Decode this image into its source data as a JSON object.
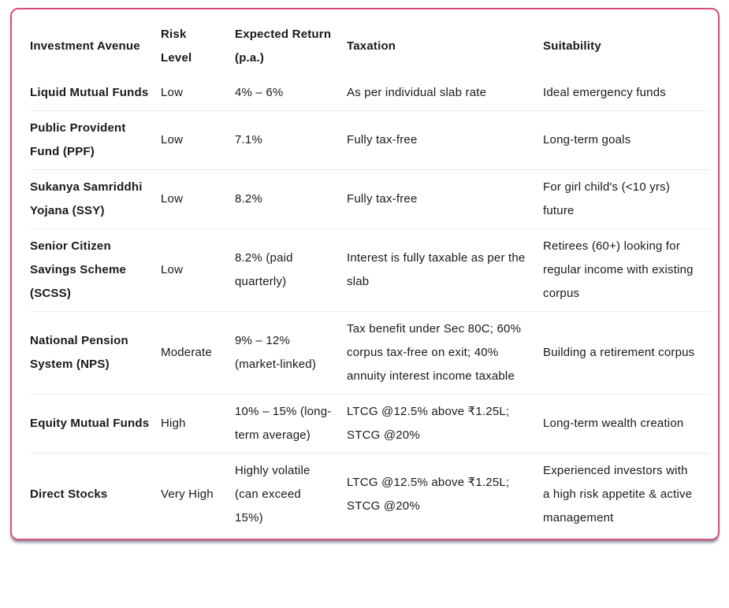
{
  "colors": {
    "accent_pink": "#D84E7D",
    "divider": "#E5EEEE",
    "text": "#191919",
    "bottom_shadow": "#39415A",
    "background": "#FFFFFF"
  },
  "table": {
    "columns": [
      "Investment Avenue",
      "Risk Level",
      "Expected Return (p.a.)",
      "Taxation",
      "Suitability"
    ],
    "rows": [
      {
        "avenue": "Liquid Mutual Funds",
        "risk": "Low",
        "return": "4% – 6%",
        "taxation": "As per individual slab rate",
        "suitability": "Ideal emergency funds"
      },
      {
        "avenue": "Public Provident Fund (PPF)",
        "risk": "Low",
        "return": "7.1%",
        "taxation": "Fully tax-free",
        "suitability": "Long-term goals"
      },
      {
        "avenue": "Sukanya Samriddhi Yojana (SSY)",
        "risk": "Low",
        "return": "8.2%",
        "taxation": "Fully tax-free",
        "suitability": "For girl child's (<10 yrs) future"
      },
      {
        "avenue": "Senior Citizen Savings Scheme (SCSS)",
        "risk": "Low",
        "return": "8.2% (paid quarterly)",
        "taxation": "Interest is fully taxable as per the slab",
        "suitability": "Retirees (60+) looking for regular income with existing corpus"
      },
      {
        "avenue": "National Pension System (NPS)",
        "risk": "Moderate",
        "return": "9% – 12% (market-linked)",
        "taxation": "Tax benefit under Sec 80C; 60% corpus tax-free on exit; 40% annuity interest income taxable",
        "suitability": "Building a retirement corpus"
      },
      {
        "avenue": "Equity Mutual Funds",
        "risk": "High",
        "return": "10% – 15% (long-term average)",
        "taxation": "LTCG @12.5% above ₹1.25L; STCG @20%",
        "suitability": "Long-term wealth creation"
      },
      {
        "avenue": "Direct Stocks",
        "risk": "Very High",
        "return": "Highly volatile (can exceed 15%)",
        "taxation": "LTCG @12.5% above ₹1.25L; STCG @20%",
        "suitability": "Experienced investors with a high risk appetite & active management"
      }
    ]
  }
}
